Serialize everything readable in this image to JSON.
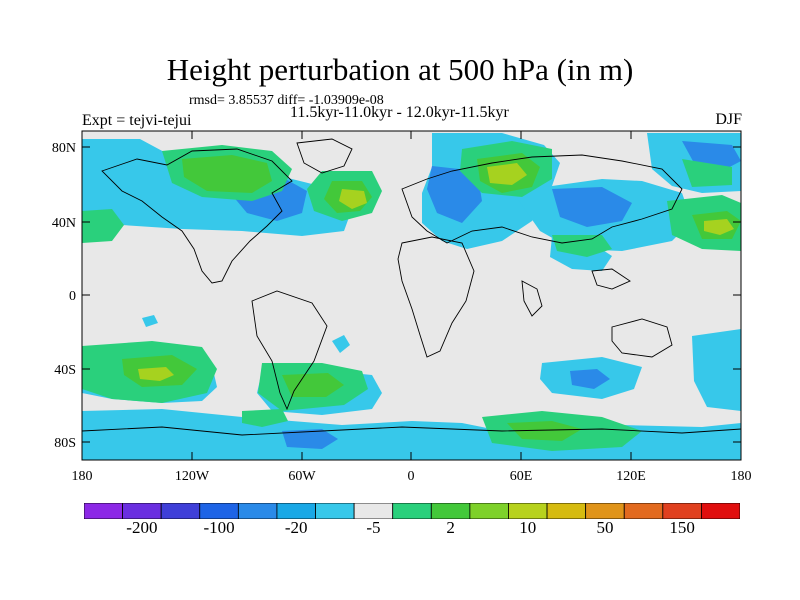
{
  "header": {
    "title": "Height perturbation at 500 hPa (in m)",
    "stats": "rmsd= 3.85537 diff= -1.03909e-08",
    "periods": "11.5kyr-11.0kyr - 12.0kyr-11.5kyr",
    "experiment": "Expt = tejvi-tejui",
    "season": "DJF"
  },
  "axes": {
    "lat_ticks": [
      "80N",
      "40N",
      "0",
      "40S",
      "80S"
    ],
    "lon_ticks": [
      "180",
      "120W",
      "60W",
      "0",
      "60E",
      "120E",
      "180"
    ]
  },
  "colorbar": {
    "colors": [
      "#8c28e6",
      "#6a2ee0",
      "#3f3fd8",
      "#1e64e6",
      "#2a8ae8",
      "#19a8e6",
      "#37c8ea",
      "#e8e8e8",
      "#2ad07c",
      "#43c83a",
      "#7ed12a",
      "#b7d21d",
      "#d6bb10",
      "#e0941a",
      "#e26a1f",
      "#e0401f",
      "#e00e0e"
    ],
    "labels": [
      "-200",
      "-100",
      "-20",
      "-5",
      "2",
      "10",
      "50",
      "150"
    ]
  },
  "map_legend": {
    "neutral": "#e8e8e8",
    "neg_light": "#37c8ea",
    "neg_mid": "#2a8ae8",
    "pos_light": "#2ad07c",
    "pos_mid": "#43c83a",
    "pos_strong": "#a6d21f"
  }
}
